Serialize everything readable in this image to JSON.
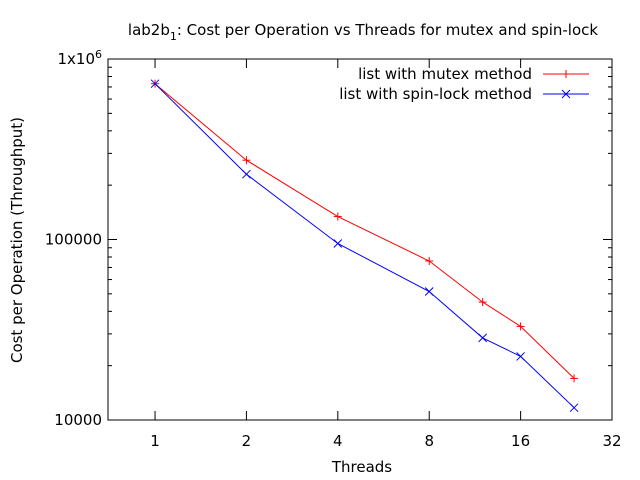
{
  "chart_data": {
    "type": "line",
    "title_parts": {
      "pre": "lab2b",
      "sub": "1",
      "post": ": Cost per Operation vs Threads for mutex and spin-lock"
    },
    "xlabel": "Threads",
    "ylabel": "Cost per Operation (Throughput)",
    "x_scale": "log2",
    "y_scale": "log10",
    "xlim": [
      0.7,
      32
    ],
    "ylim": [
      10000,
      1000000
    ],
    "x_ticks": [
      1,
      2,
      4,
      8,
      16,
      32
    ],
    "x_tick_labels": [
      "1",
      "2",
      "4",
      "8",
      "16",
      "32"
    ],
    "y_ticks": [
      10000,
      100000,
      1000000
    ],
    "y_tick_labels": [
      "10000",
      "100000",
      "1x10"
    ],
    "y_tick_sup": "6",
    "legend_position": "top-right",
    "series": [
      {
        "name": "list with mutex method",
        "color": "#ff0000",
        "marker": "plus",
        "x": [
          1,
          2,
          4,
          8,
          12,
          16,
          24
        ],
        "y": [
          730000,
          275000,
          134000,
          76000,
          45000,
          33000,
          17000
        ]
      },
      {
        "name": "list with spin-lock method",
        "color": "#0000ff",
        "marker": "cross",
        "x": [
          1,
          2,
          4,
          8,
          12,
          16,
          24
        ],
        "y": [
          730000,
          230000,
          95000,
          51500,
          28500,
          22500,
          11700
        ]
      }
    ]
  }
}
